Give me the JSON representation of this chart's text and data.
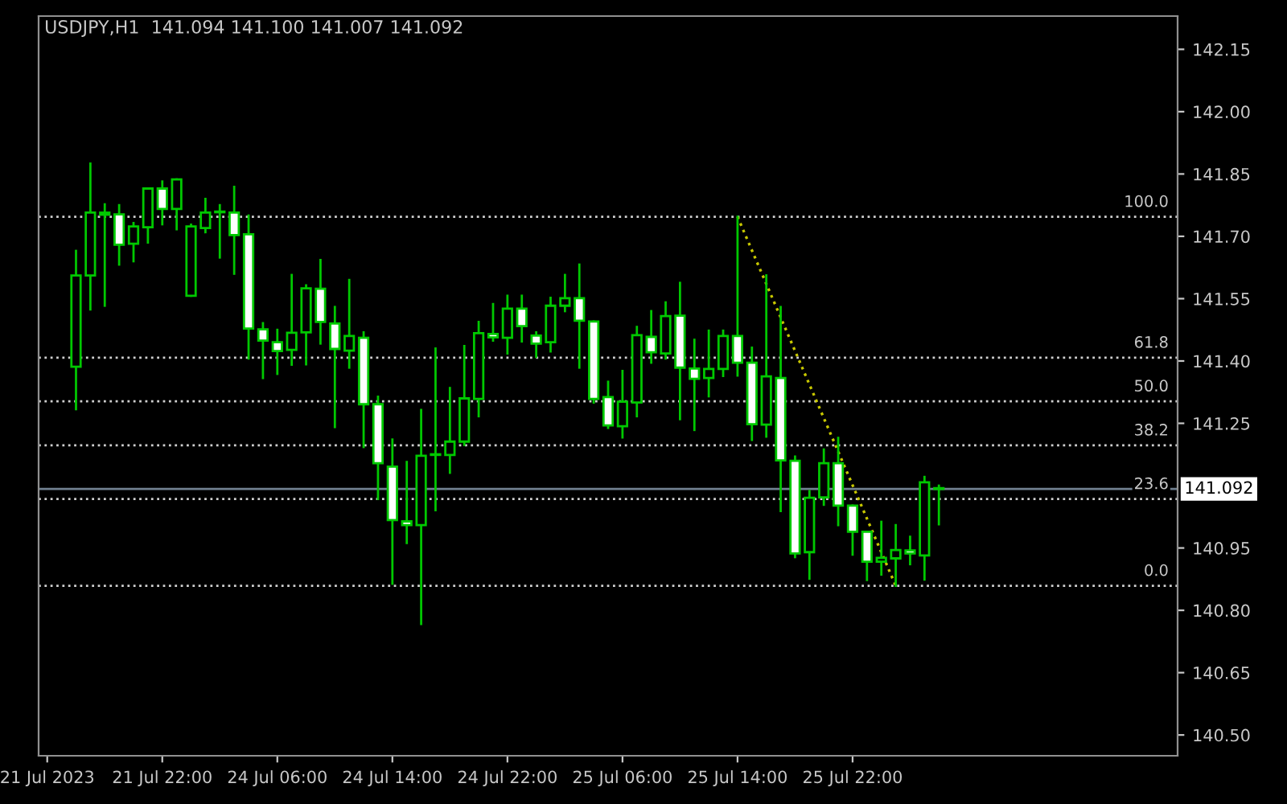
{
  "chart_data": {
    "type": "candlestick",
    "title": "USDJPY,H1  141.094 141.100 141.007 141.092",
    "categories": [
      "21 Jul 2023",
      null,
      null,
      null,
      null,
      null,
      null,
      null,
      "21 Jul 22:00",
      null,
      null,
      null,
      null,
      null,
      null,
      null,
      "24 Jul 06:00",
      null,
      null,
      null,
      null,
      null,
      null,
      null,
      "24 Jul 14:00",
      null,
      null,
      null,
      null,
      null,
      null,
      null,
      "24 Jul 22:00",
      null,
      null,
      null,
      null,
      null,
      null,
      null,
      "25 Jul 06:00",
      null,
      null,
      null,
      null,
      null,
      null,
      null,
      "25 Jul 14:00",
      null,
      null,
      null,
      null,
      null,
      null,
      null,
      "25 Jul 22:00",
      null,
      null,
      null,
      null,
      null,
      null,
      null,
      null,
      null,
      null,
      null,
      null,
      null,
      null,
      null,
      null,
      null,
      null,
      null,
      null,
      null,
      null
    ],
    "ohlc": [
      null,
      null,
      [
        141.386,
        141.665,
        141.284,
        141.606
      ],
      [
        141.606,
        141.875,
        141.524,
        141.757
      ],
      [
        141.757,
        141.777,
        141.533,
        141.752
      ],
      [
        141.753,
        141.775,
        141.632,
        141.68
      ],
      [
        141.682,
        141.732,
        141.64,
        141.724
      ],
      [
        141.722,
        141.815,
        141.685,
        141.815
      ],
      [
        141.815,
        141.832,
        141.729,
        141.766
      ],
      [
        141.766,
        141.837,
        141.717,
        141.837
      ],
      [
        141.557,
        141.728,
        141.557,
        141.724
      ],
      [
        141.72,
        141.79,
        141.71,
        141.757
      ],
      [
        141.758,
        141.775,
        141.649,
        141.758
      ],
      [
        141.757,
        141.819,
        141.61,
        141.703
      ],
      [
        141.705,
        141.75,
        141.406,
        141.478
      ],
      [
        141.476,
        141.491,
        141.359,
        141.449
      ],
      [
        141.445,
        141.475,
        141.369,
        141.424
      ],
      [
        141.427,
        141.607,
        141.391,
        141.468
      ],
      [
        141.469,
        141.582,
        141.392,
        141.575
      ],
      [
        141.574,
        141.643,
        141.442,
        141.494
      ],
      [
        141.49,
        141.53,
        141.241,
        141.429
      ],
      [
        141.425,
        141.595,
        141.384,
        141.46
      ],
      [
        141.456,
        141.469,
        141.193,
        141.296
      ],
      [
        141.296,
        141.314,
        141.068,
        141.154
      ],
      [
        141.146,
        141.211,
        140.864,
        141.017
      ],
      [
        141.014,
        141.157,
        140.962,
        141.005
      ],
      [
        141.005,
        141.282,
        140.767,
        141.172
      ],
      [
        141.174,
        141.43,
        141.041,
        141.174
      ],
      [
        141.174,
        141.335,
        141.131,
        141.206
      ],
      [
        141.206,
        141.436,
        141.198,
        141.31
      ],
      [
        141.309,
        141.494,
        141.267,
        141.467
      ],
      [
        141.465,
        141.537,
        141.449,
        141.457
      ],
      [
        141.456,
        141.557,
        141.418,
        141.526
      ],
      [
        141.526,
        141.557,
        141.447,
        141.484
      ],
      [
        141.461,
        141.469,
        141.41,
        141.442
      ],
      [
        141.445,
        141.552,
        141.423,
        141.533
      ],
      [
        141.533,
        141.607,
        141.52,
        141.551
      ],
      [
        141.551,
        141.632,
        141.384,
        141.497
      ],
      [
        141.495,
        141.495,
        141.3,
        141.309
      ],
      [
        141.313,
        141.35,
        141.239,
        141.245
      ],
      [
        141.243,
        141.376,
        141.216,
        141.302
      ],
      [
        141.3,
        141.482,
        141.267,
        141.462
      ],
      [
        141.458,
        141.52,
        141.396,
        141.421
      ],
      [
        141.418,
        141.541,
        141.406,
        141.508
      ],
      [
        141.509,
        141.588,
        141.26,
        141.384
      ],
      [
        141.382,
        141.451,
        141.234,
        141.357
      ],
      [
        141.359,
        141.473,
        141.315,
        141.381
      ],
      [
        141.381,
        141.473,
        141.364,
        141.46
      ],
      [
        141.46,
        141.747,
        141.365,
        141.396
      ],
      [
        141.396,
        141.432,
        141.21,
        141.248
      ],
      [
        141.247,
        141.606,
        141.218,
        141.363
      ],
      [
        141.359,
        141.53,
        141.039,
        141.161
      ],
      [
        141.16,
        141.17,
        140.928,
        140.937
      ],
      [
        140.94,
        141.087,
        140.876,
        141.071
      ],
      [
        141.072,
        141.187,
        141.054,
        141.154
      ],
      [
        141.154,
        141.215,
        141.005,
        141.052
      ],
      [
        141.052,
        141.052,
        140.934,
        140.989
      ],
      [
        140.989,
        140.989,
        140.873,
        140.917
      ],
      [
        140.917,
        141.013,
        140.886,
        140.926
      ],
      [
        140.925,
        141.005,
        140.859,
        140.945
      ],
      [
        140.944,
        140.977,
        140.911,
        140.937
      ],
      [
        140.932,
        141.121,
        140.874,
        141.108
      ],
      [
        141.094,
        141.1,
        141.007,
        141.092
      ],
      null,
      null,
      null,
      null,
      null,
      null,
      null,
      null,
      null,
      null,
      null,
      null,
      null,
      null,
      null,
      null
    ],
    "color": "#00c800",
    "series": [
      {
        "type": "line",
        "color": "#c8c800",
        "line_style": "dotted",
        "values": [
          null,
          null,
          null,
          null,
          null,
          null,
          null,
          null,
          null,
          null,
          null,
          null,
          null,
          null,
          null,
          null,
          null,
          null,
          null,
          null,
          null,
          null,
          null,
          null,
          null,
          null,
          null,
          null,
          null,
          null,
          null,
          null,
          null,
          null,
          null,
          null,
          null,
          null,
          null,
          null,
          null,
          null,
          null,
          null,
          null,
          null,
          null,
          null,
          141.747,
          null,
          null,
          null,
          null,
          null,
          null,
          null,
          null,
          null,
          null,
          140.859,
          null,
          null,
          null,
          null,
          null,
          null,
          null,
          null,
          null,
          null,
          null,
          null,
          null,
          null,
          null,
          null,
          null,
          null,
          null
        ]
      }
    ],
    "annotations": [
      {
        "text": "100.0",
        "y": 141.747
      },
      {
        "text": "61.8",
        "y": 141.408
      },
      {
        "text": "50.0",
        "y": 141.303
      },
      {
        "text": "38.2",
        "y": 141.197
      },
      {
        "text": "23.6",
        "y": 141.068
      },
      {
        "text": "0.0",
        "y": 140.859
      }
    ],
    "ref_lines": [
      {
        "axis": "y",
        "value": 141.747,
        "color": "#d0d0d0",
        "line_style": "dotted"
      },
      {
        "axis": "y",
        "value": 141.408,
        "color": "#d0d0d0",
        "line_style": "dotted"
      },
      {
        "axis": "y",
        "value": 141.303,
        "color": "#d0d0d0",
        "line_style": "dotted"
      },
      {
        "axis": "y",
        "value": 141.197,
        "color": "#d0d0d0",
        "line_style": "dotted"
      },
      {
        "axis": "y",
        "value": 141.068,
        "color": "#d0d0d0",
        "line_style": "dotted"
      },
      {
        "axis": "y",
        "value": 140.859,
        "color": "#d0d0d0",
        "line_style": "dotted"
      },
      {
        "axis": "y",
        "value": 141.092,
        "label": "141.092",
        "color": "#708090",
        "line_style": "solid"
      }
    ],
    "ylim": [
      140.45,
      142.23
    ],
    "yticks": [
      {
        "value": 140.5,
        "label": "140.50"
      },
      140.65,
      {
        "value": 140.8,
        "label": "140.80"
      },
      140.95,
      141.25,
      {
        "value": 141.4,
        "label": "141.40"
      },
      141.55,
      {
        "value": 141.7,
        "label": "141.70"
      },
      141.85,
      {
        "value": 142.0,
        "label": "142.00"
      },
      142.15
    ],
    "grid": false,
    "legend": false
  }
}
